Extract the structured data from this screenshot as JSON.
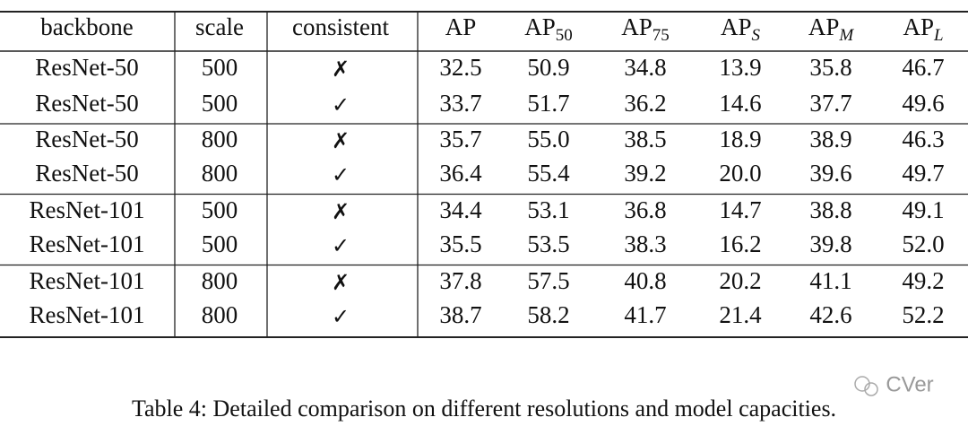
{
  "table": {
    "header": [
      {
        "text": "backbone"
      },
      {
        "text": "scale"
      },
      {
        "text": "consistent"
      },
      {
        "text": "AP"
      },
      {
        "text": "AP",
        "sub": "50"
      },
      {
        "text": "AP",
        "sub": "75"
      },
      {
        "text": "AP",
        "sub": "S"
      },
      {
        "text": "AP",
        "sub": "M"
      },
      {
        "text": "AP",
        "sub": "L"
      }
    ],
    "rows": [
      [
        "ResNet-50",
        "500",
        "✗",
        "32.5",
        "50.9",
        "34.8",
        "13.9",
        "35.8",
        "46.7"
      ],
      [
        "ResNet-50",
        "500",
        "✓",
        "33.7",
        "51.7",
        "36.2",
        "14.6",
        "37.7",
        "49.6"
      ],
      [
        "ResNet-50",
        "800",
        "✗",
        "35.7",
        "55.0",
        "38.5",
        "18.9",
        "38.9",
        "46.3"
      ],
      [
        "ResNet-50",
        "800",
        "✓",
        "36.4",
        "55.4",
        "39.2",
        "20.0",
        "39.6",
        "49.7"
      ],
      [
        "ResNet-101",
        "500",
        "✗",
        "34.4",
        "53.1",
        "36.8",
        "14.7",
        "38.8",
        "49.1"
      ],
      [
        "ResNet-101",
        "500",
        "✓",
        "35.5",
        "53.5",
        "38.3",
        "16.2",
        "39.8",
        "52.0"
      ],
      [
        "ResNet-101",
        "800",
        "✗",
        "37.8",
        "57.5",
        "40.8",
        "20.2",
        "41.1",
        "49.2"
      ],
      [
        "ResNet-101",
        "800",
        "✓",
        "38.7",
        "58.2",
        "41.7",
        "21.4",
        "42.6",
        "52.2"
      ]
    ]
  },
  "caption": "Table 4: Detailed comparison on different resolutions and model capacities.",
  "watermark": "CVer"
}
